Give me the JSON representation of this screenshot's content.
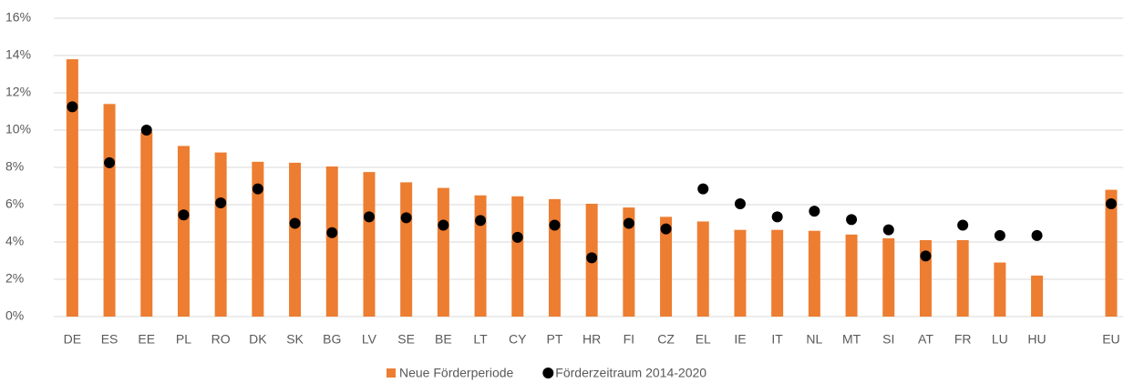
{
  "chart_data": {
    "type": "bar",
    "categories": [
      "DE",
      "ES",
      "EE",
      "PL",
      "RO",
      "DK",
      "SK",
      "BG",
      "LV",
      "SE",
      "BE",
      "LT",
      "CY",
      "PT",
      "HR",
      "FI",
      "CZ",
      "EL",
      "IE",
      "IT",
      "NL",
      "MT",
      "SI",
      "AT",
      "FR",
      "LU",
      "HU",
      null,
      "EU"
    ],
    "series": [
      {
        "name": "Neue Förderperiode",
        "type": "bar",
        "color": "#ed7d31",
        "values": [
          13.8,
          11.4,
          9.9,
          9.15,
          8.8,
          8.3,
          8.25,
          8.05,
          7.75,
          7.2,
          6.9,
          6.5,
          6.45,
          6.3,
          6.05,
          5.85,
          5.35,
          5.1,
          4.65,
          4.65,
          4.6,
          4.4,
          4.2,
          4.1,
          4.1,
          2.9,
          2.2,
          null,
          6.8
        ]
      },
      {
        "name": "Förderzeitraum 2014-2020",
        "type": "scatter",
        "color": "#000000",
        "values": [
          11.25,
          8.25,
          10.0,
          5.45,
          6.1,
          6.85,
          5.0,
          4.5,
          5.35,
          5.3,
          4.9,
          5.15,
          4.25,
          4.9,
          3.15,
          5.0,
          4.7,
          6.85,
          6.05,
          5.35,
          5.65,
          5.2,
          4.65,
          3.25,
          4.9,
          4.35,
          4.35,
          null,
          6.05
        ]
      }
    ],
    "ylim": [
      0,
      16
    ],
    "yticks": [
      {
        "value": 0,
        "label": "0%"
      },
      {
        "value": 2,
        "label": "2%"
      },
      {
        "value": 4,
        "label": "4%"
      },
      {
        "value": 6,
        "label": "6%"
      },
      {
        "value": 8,
        "label": "8%"
      },
      {
        "value": 10,
        "label": "10%"
      },
      {
        "value": 12,
        "label": "12%"
      },
      {
        "value": 14,
        "label": "14%"
      },
      {
        "value": 16,
        "label": "16%"
      }
    ],
    "grid": true,
    "legend": "bottom"
  }
}
